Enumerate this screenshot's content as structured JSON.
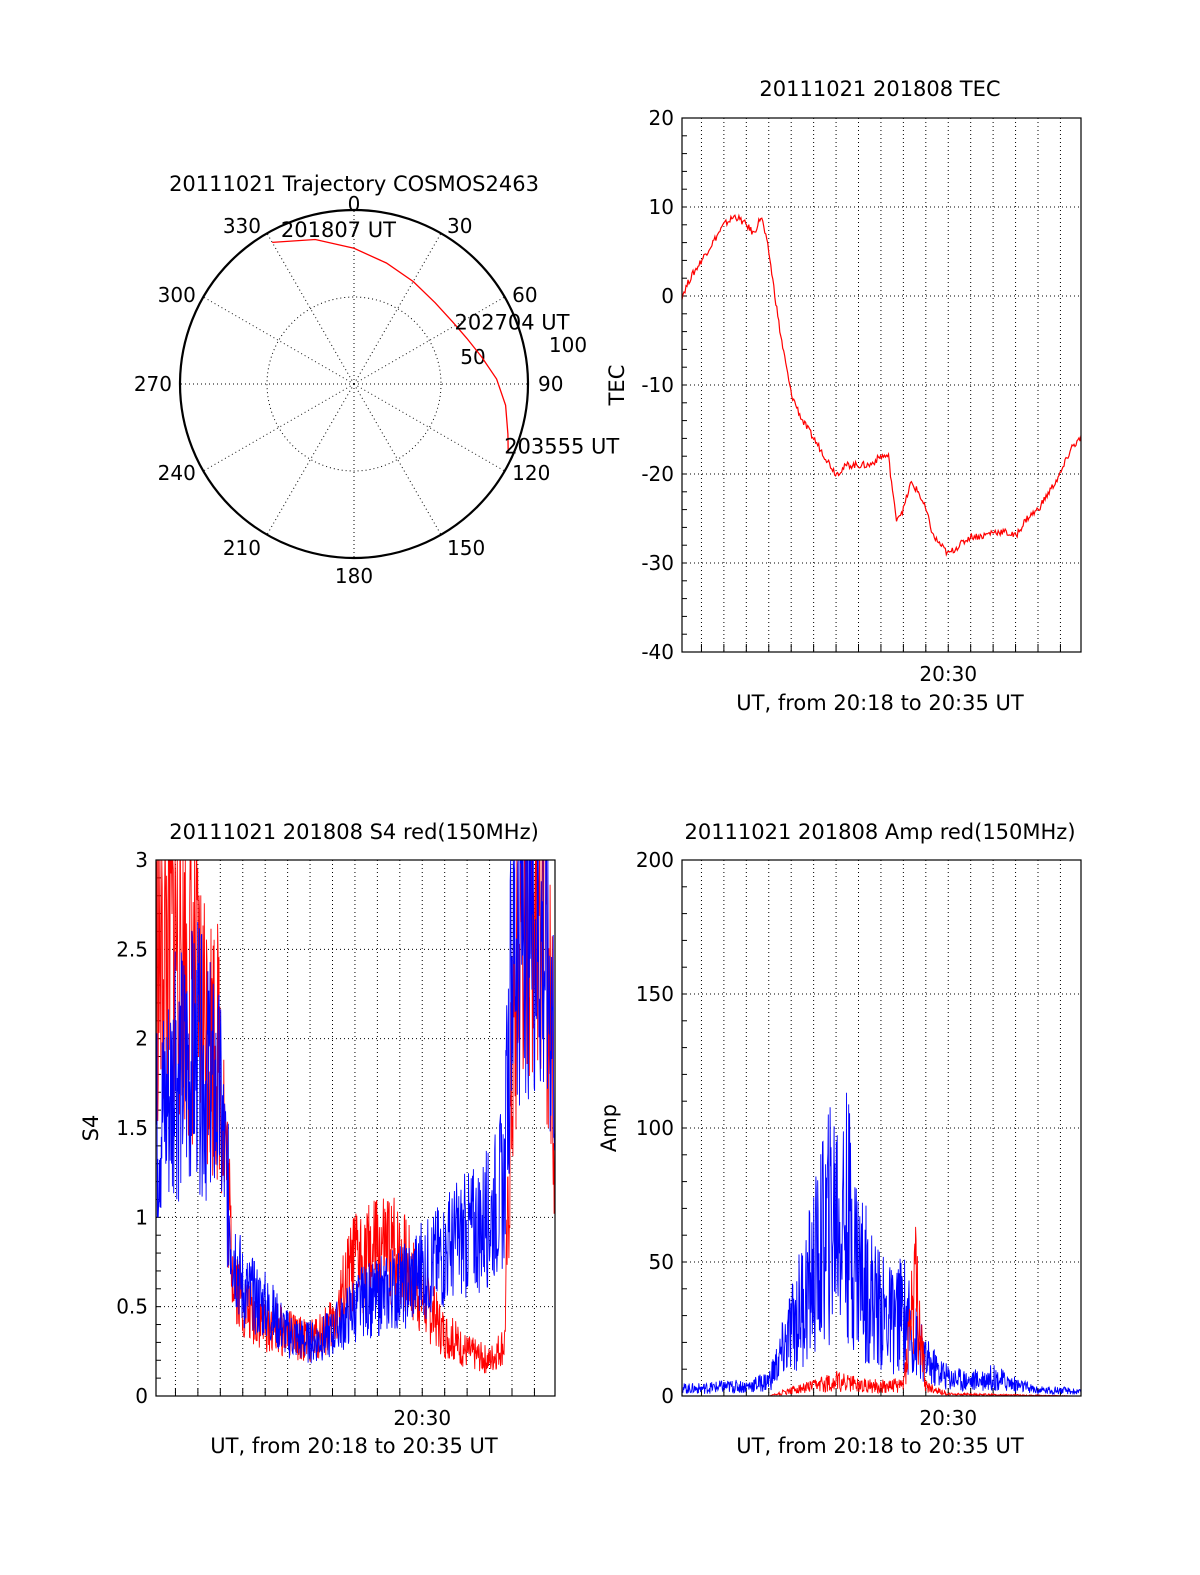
{
  "chart_data": [
    {
      "type": "polar",
      "title": "20111021 Trajectory COSMOS2463",
      "angle_labels": [
        "0",
        "30",
        "60",
        "90",
        "120",
        "150",
        "180",
        "210",
        "240",
        "270",
        "300",
        "330"
      ],
      "radius_labels": [
        "50",
        "100"
      ],
      "rlim": [
        0,
        100
      ],
      "grid": true,
      "series": [
        {
          "color": "#ff0000",
          "points": [
            {
              "az": 330,
              "r": 94
            },
            {
              "az": 345,
              "r": 86
            },
            {
              "az": 0,
              "r": 78
            },
            {
              "az": 15,
              "r": 72
            },
            {
              "az": 30,
              "r": 68
            },
            {
              "az": 45,
              "r": 66
            },
            {
              "az": 58,
              "r": 67
            },
            {
              "az": 68,
              "r": 70
            },
            {
              "az": 78,
              "r": 75
            },
            {
              "az": 88,
              "r": 82
            },
            {
              "az": 98,
              "r": 88
            },
            {
              "az": 108,
              "r": 93
            },
            {
              "az": 114,
              "r": 97
            }
          ]
        }
      ],
      "annotations": [
        {
          "text": "201807 UT",
          "az": 335,
          "r": 94
        },
        {
          "text": "202704 UT",
          "az": 62,
          "r": 68
        },
        {
          "text": "203555 UT",
          "az": 114,
          "r": 97
        }
      ]
    },
    {
      "type": "line",
      "title": "20111021 201808 TEC",
      "xlabel": "UT, from 20:18 to 20:35 UT",
      "ylabel": "TEC",
      "xlim": [
        "20:18:08",
        "20:35:55"
      ],
      "ylim": [
        -40,
        20
      ],
      "yticks": [
        "-40",
        "-30",
        "-20",
        "-10",
        "0",
        "10",
        "20"
      ],
      "xtick_labels": [
        {
          "at": "20:30",
          "text": "20:30"
        }
      ],
      "grid": true,
      "series": [
        {
          "color": "#ff0000",
          "x": [
            "20:18:08",
            "20:18:30",
            "20:19:00",
            "20:19:30",
            "20:20:00",
            "20:20:30",
            "20:21:00",
            "20:21:20",
            "20:21:40",
            "20:22:00",
            "20:22:30",
            "20:23:00",
            "20:23:30",
            "20:24:00",
            "20:24:30",
            "20:25:00",
            "20:25:30",
            "20:26:00",
            "20:26:30",
            "20:27:00",
            "20:27:20",
            "20:27:40",
            "20:28:00",
            "20:28:20",
            "20:28:40",
            "20:29:00",
            "20:29:20",
            "20:29:40",
            "20:30:00",
            "20:30:30",
            "20:31:00",
            "20:31:30",
            "20:32:00",
            "20:32:30",
            "20:33:00",
            "20:33:30",
            "20:34:00",
            "20:34:30",
            "20:35:00",
            "20:35:30",
            "20:35:55"
          ],
          "y": [
            0,
            2,
            4,
            6,
            8,
            9,
            8,
            7,
            9,
            5,
            -4,
            -11,
            -14,
            -16,
            -18,
            -20,
            -19,
            -19,
            -19,
            -18,
            -18,
            -25,
            -24,
            -21,
            -22,
            -24,
            -27,
            -28,
            -29,
            -28,
            -27,
            -27,
            -26.5,
            -26.5,
            -27,
            -25,
            -24,
            -22,
            -20,
            -17,
            -16
          ]
        }
      ]
    },
    {
      "type": "line",
      "title": "20111021 201808 S4 red(150MHz)",
      "xlabel": "UT, from 20:18 to 20:35 UT",
      "ylabel": "S4",
      "xlim": [
        "20:18:08",
        "20:35:55"
      ],
      "ylim": [
        0,
        3
      ],
      "yticks": [
        "0",
        "0.5",
        "1",
        "1.5",
        "2",
        "2.5",
        "3"
      ],
      "xtick_labels": [
        {
          "at": "20:30",
          "text": "20:30"
        }
      ],
      "grid": true,
      "series": [
        {
          "color": "#ff0000",
          "x": [
            "20:18:08",
            "20:19:00",
            "20:20:00",
            "20:21:00",
            "20:21:30",
            "20:22:00",
            "20:23:00",
            "20:24:00",
            "20:25:00",
            "20:26:00",
            "20:27:00",
            "20:28:00",
            "20:29:00",
            "20:30:00",
            "20:31:00",
            "20:32:00",
            "20:33:00",
            "20:33:40",
            "20:34:00",
            "20:34:30",
            "20:35:00",
            "20:35:30",
            "20:35:55"
          ],
          "y": [
            2.4,
            2.6,
            2.2,
            1.9,
            0.8,
            0.5,
            0.4,
            0.35,
            0.3,
            0.4,
            0.75,
            0.8,
            0.8,
            0.55,
            0.35,
            0.25,
            0.2,
            0.3,
            1.8,
            2.8,
            2.9,
            2.7,
            1.5
          ]
        },
        {
          "color": "#0000ff",
          "x": [
            "20:18:08",
            "20:19:00",
            "20:20:00",
            "20:21:00",
            "20:21:30",
            "20:22:00",
            "20:23:00",
            "20:24:00",
            "20:25:00",
            "20:26:00",
            "20:27:00",
            "20:28:00",
            "20:29:00",
            "20:30:00",
            "20:31:00",
            "20:32:00",
            "20:33:00",
            "20:33:40",
            "20:34:00",
            "20:34:30",
            "20:35:00",
            "20:35:30",
            "20:35:55"
          ],
          "y": [
            1.5,
            1.8,
            1.9,
            1.6,
            0.9,
            0.6,
            0.5,
            0.35,
            0.3,
            0.35,
            0.5,
            0.55,
            0.6,
            0.7,
            0.8,
            0.9,
            1.0,
            1.2,
            2.5,
            2.8,
            2.7,
            2.5,
            2.0
          ]
        }
      ]
    },
    {
      "type": "line",
      "title": "20111021 201808 Amp red(150MHz)",
      "xlabel": "UT, from 20:18 to 20:35 UT",
      "ylabel": "Amp",
      "xlim": [
        "20:18:08",
        "20:35:55"
      ],
      "ylim": [
        0,
        200
      ],
      "yticks": [
        "0",
        "50",
        "100",
        "150",
        "200"
      ],
      "xtick_labels": [
        {
          "at": "20:30",
          "text": "20:30"
        }
      ],
      "grid": true,
      "series": [
        {
          "color": "#0000ff",
          "x": [
            "20:18:08",
            "20:19:00",
            "20:20:00",
            "20:21:00",
            "20:22:00",
            "20:22:30",
            "20:23:00",
            "20:23:30",
            "20:24:00",
            "20:24:30",
            "20:25:00",
            "20:25:30",
            "20:26:00",
            "20:26:30",
            "20:27:00",
            "20:27:30",
            "20:28:00",
            "20:28:30",
            "20:29:00",
            "20:30:00",
            "20:31:00",
            "20:32:00",
            "20:33:00",
            "20:34:00",
            "20:35:00",
            "20:35:55"
          ],
          "y": [
            4,
            4,
            5,
            5,
            8,
            20,
            35,
            50,
            65,
            85,
            100,
            95,
            70,
            55,
            45,
            40,
            45,
            30,
            18,
            10,
            8,
            10,
            6,
            3,
            3,
            2
          ]
        },
        {
          "color": "#ff0000",
          "x": [
            "20:18:08",
            "20:22:00",
            "20:23:00",
            "20:24:00",
            "20:25:00",
            "20:26:00",
            "20:27:00",
            "20:28:00",
            "20:28:30",
            "20:29:00",
            "20:30:00",
            "20:35:55"
          ],
          "y": [
            0,
            0,
            3,
            5,
            8,
            6,
            5,
            6,
            60,
            5,
            1,
            0
          ]
        }
      ]
    }
  ]
}
